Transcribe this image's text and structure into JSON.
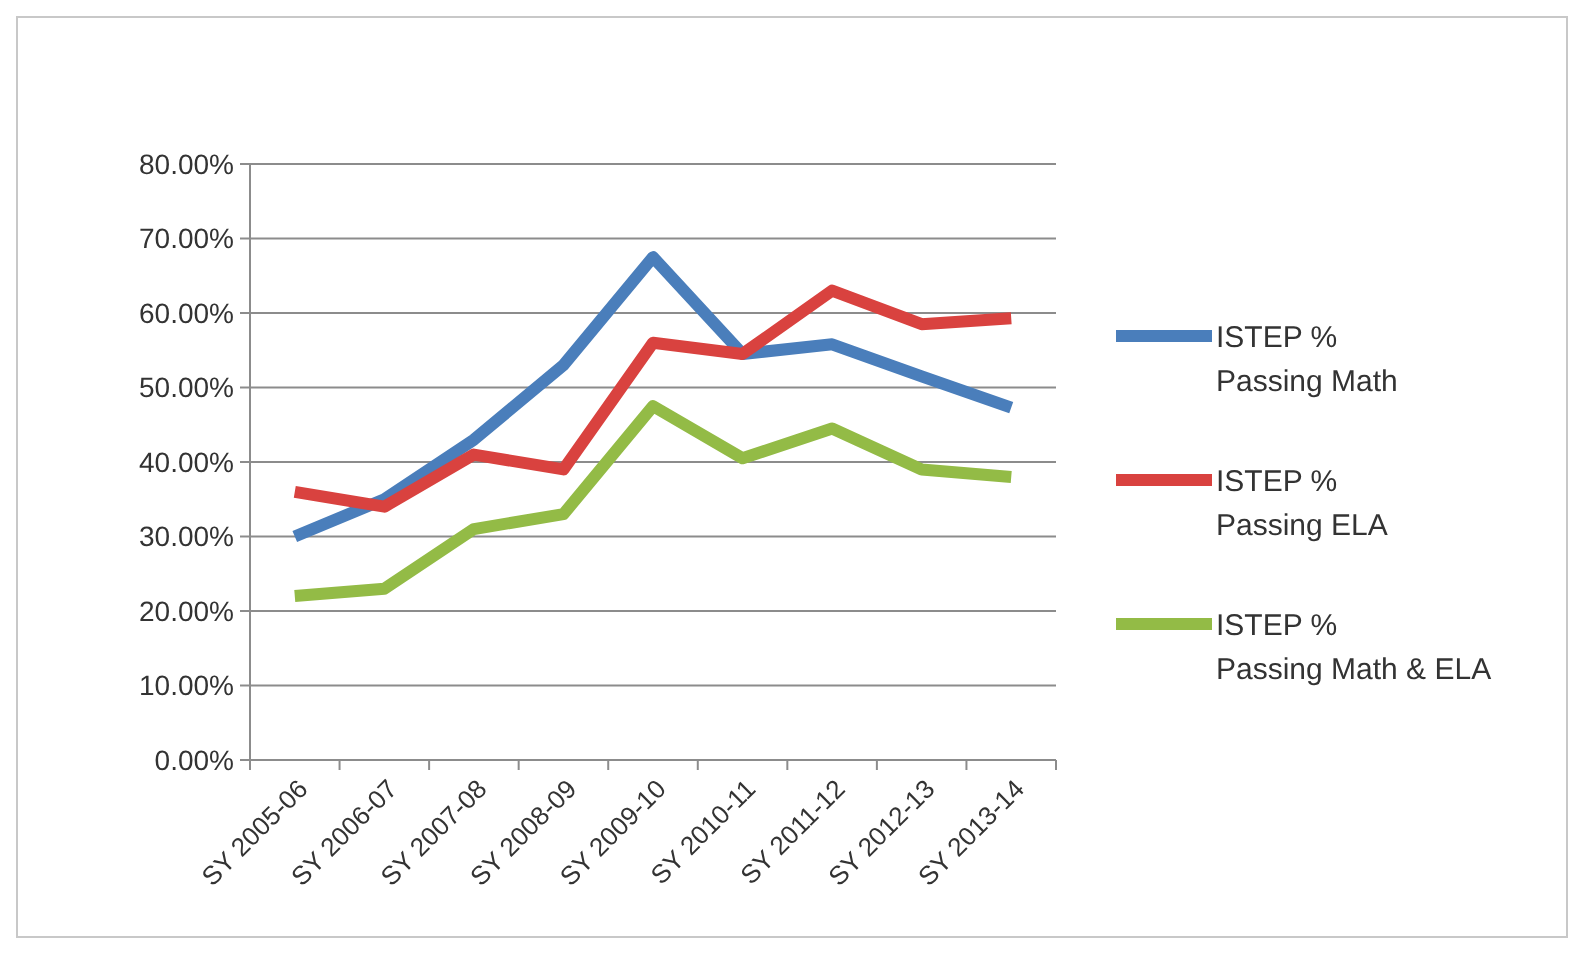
{
  "chart_data": {
    "type": "line",
    "categories": [
      "SY 2005-06",
      "SY 2006-07",
      "SY 2007-08",
      "SY 2008-09",
      "SY 2009-10",
      "SY 2010-11",
      "SY 2011-12",
      "SY 2012-13",
      "SY 2013-14"
    ],
    "series": [
      {
        "name": "ISTEP % Passing Math",
        "color": "#4a7ebb",
        "values": [
          30,
          35,
          43,
          53,
          67.5,
          54.5,
          55.8,
          51.5,
          47.3
        ]
      },
      {
        "name": "ISTEP % Passing ELA",
        "color": "#d9423f",
        "values": [
          36,
          34,
          41,
          39,
          56,
          54.5,
          63,
          58.5,
          59.3
        ]
      },
      {
        "name": "ISTEP % Passing Math & ELA",
        "color": "#93bb46",
        "values": [
          22,
          23,
          31,
          33,
          47.5,
          40.5,
          44.5,
          39,
          38
        ]
      }
    ],
    "ylim": [
      0,
      80
    ],
    "yticks": [
      {
        "value": 0,
        "label": "0.00%"
      },
      {
        "value": 10,
        "label": "10.00%"
      },
      {
        "value": 20,
        "label": "20.00%"
      },
      {
        "value": 30,
        "label": "30.00%"
      },
      {
        "value": 40,
        "label": "40.00%"
      },
      {
        "value": 50,
        "label": "50.00%"
      },
      {
        "value": 60,
        "label": "60.00%"
      },
      {
        "value": 70,
        "label": "70.00%"
      },
      {
        "value": 80,
        "label": "80.00%"
      }
    ],
    "grid": "y",
    "legend": "right",
    "marker": "none",
    "line_style": "solid"
  }
}
